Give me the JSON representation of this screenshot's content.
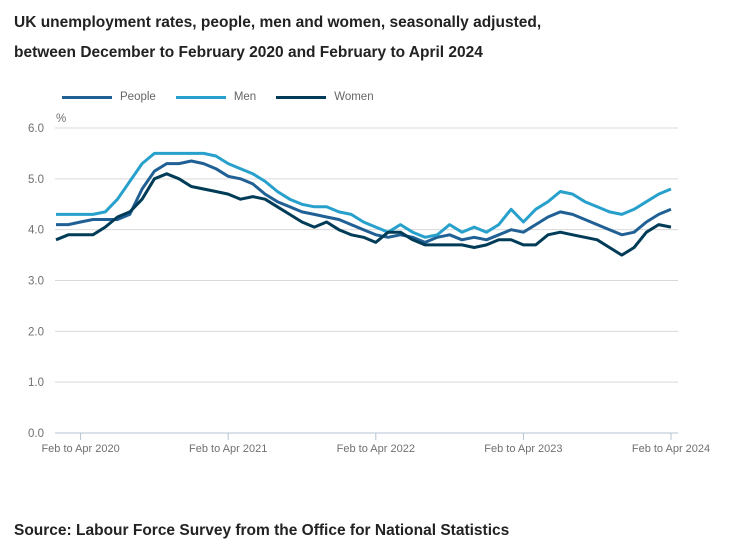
{
  "title": {
    "line1": "UK unemployment rates, people, men and women, seasonally adjusted,",
    "line2": "between December to February 2020 and February to April 2024"
  },
  "source": "Source: Labour Force Survey from the Office for National Statistics",
  "colors": {
    "people": "#206095",
    "men": "#27a0cc",
    "women": "#003c57",
    "grid": "#d9d9d9",
    "axis": "#b5c3d1",
    "axis_text": "#707071",
    "title_text": "#222222",
    "legend_text": "#666666"
  },
  "chart_data": {
    "type": "line",
    "title": "UK unemployment rates, people, men and women, seasonally adjusted, between December to February 2020 and February to April 2024",
    "unit_label": "%",
    "ylabel": "%",
    "xlabel": "",
    "ylim": [
      0,
      6
    ],
    "yticks": [
      0,
      1,
      2,
      3,
      4,
      5,
      6
    ],
    "grid": true,
    "legend_position": "top-left",
    "x_range_description": "Rolling three-month periods, monthly, from Dec-Feb 2020 to Feb-Apr 2024 (51 points)",
    "x_ticks": [
      {
        "index": 2,
        "label": "Feb to Apr 2020"
      },
      {
        "index": 14,
        "label": "Feb to Apr 2021"
      },
      {
        "index": 26,
        "label": "Feb to Apr 2022"
      },
      {
        "index": 38,
        "label": "Feb to Apr 2023"
      },
      {
        "index": 50,
        "label": "Feb to Apr 2024"
      }
    ],
    "series": [
      {
        "name": "People",
        "color": "#206095",
        "values": [
          4.1,
          4.1,
          4.15,
          4.2,
          4.2,
          4.2,
          4.3,
          4.8,
          5.15,
          5.3,
          5.3,
          5.35,
          5.3,
          5.2,
          5.05,
          5.0,
          4.9,
          4.7,
          4.55,
          4.45,
          4.35,
          4.3,
          4.25,
          4.2,
          4.1,
          4.0,
          3.9,
          3.85,
          3.9,
          3.85,
          3.75,
          3.85,
          3.9,
          3.8,
          3.85,
          3.8,
          3.9,
          4.0,
          3.95,
          4.1,
          4.25,
          4.35,
          4.3,
          4.2,
          4.1,
          4.0,
          3.9,
          3.95,
          4.15,
          4.3,
          4.4
        ]
      },
      {
        "name": "Men",
        "color": "#27a0cc",
        "values": [
          4.3,
          4.3,
          4.3,
          4.3,
          4.35,
          4.6,
          4.95,
          5.3,
          5.5,
          5.5,
          5.5,
          5.5,
          5.5,
          5.45,
          5.3,
          5.2,
          5.1,
          4.95,
          4.75,
          4.6,
          4.5,
          4.45,
          4.45,
          4.35,
          4.3,
          4.15,
          4.05,
          3.95,
          4.1,
          3.95,
          3.85,
          3.9,
          4.1,
          3.95,
          4.05,
          3.95,
          4.1,
          4.4,
          4.15,
          4.4,
          4.55,
          4.75,
          4.7,
          4.55,
          4.45,
          4.35,
          4.3,
          4.4,
          4.55,
          4.7,
          4.8
        ]
      },
      {
        "name": "Women",
        "color": "#003c57",
        "values": [
          3.8,
          3.9,
          3.9,
          3.9,
          4.05,
          4.25,
          4.35,
          4.6,
          5.0,
          5.1,
          5.0,
          4.85,
          4.8,
          4.75,
          4.7,
          4.6,
          4.65,
          4.6,
          4.45,
          4.3,
          4.15,
          4.05,
          4.15,
          4.0,
          3.9,
          3.85,
          3.75,
          3.95,
          3.95,
          3.8,
          3.7,
          3.7,
          3.7,
          3.7,
          3.65,
          3.7,
          3.8,
          3.8,
          3.7,
          3.7,
          3.9,
          3.95,
          3.9,
          3.85,
          3.8,
          3.65,
          3.5,
          3.65,
          3.95,
          4.1,
          4.05
        ]
      }
    ]
  }
}
